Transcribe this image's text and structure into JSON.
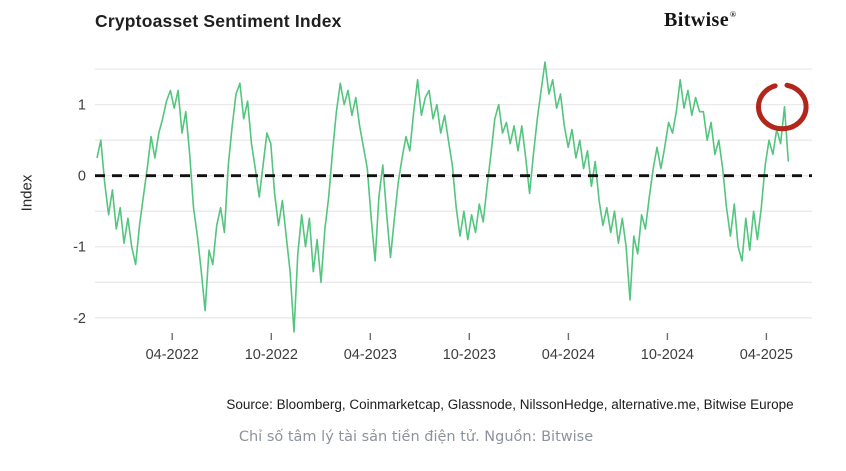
{
  "page": {
    "title": "Cryptoasset Sentiment Index",
    "brand": "Bitwise",
    "brand_reg": "®",
    "source_line": "Source: Bloomberg, Coinmarketcap, Glassnode, NilssonHedge, alternative.me, Bitwise Europe",
    "caption": "Chỉ số tâm lý tài sản tiền điện tử. Nguồn: Bitwise"
  },
  "colors": {
    "line": "#53c57e",
    "grid": "#eaeaea",
    "zero_line": "#111111",
    "annotation": "#b3261c",
    "tick_text": "#3d3d3d"
  },
  "chart_data": {
    "type": "line",
    "title": "Cryptoasset Sentiment Index",
    "xlabel": "",
    "ylabel": "Index",
    "xlim": [
      2021.86,
      2025.48
    ],
    "ylim": [
      -2.2,
      1.6
    ],
    "grid": "horizontal",
    "legend": "none",
    "y_gridlines": [
      -2,
      -1.5,
      -1,
      -0.5,
      0,
      0.5,
      1,
      1.5
    ],
    "y_ticks": [
      {
        "v": 1,
        "label": "1"
      },
      {
        "v": 0,
        "label": "0"
      },
      {
        "v": -1,
        "label": "-1"
      },
      {
        "v": -2,
        "label": "-2"
      }
    ],
    "x_ticks": [
      {
        "v": 2022.25,
        "label": "04-2022"
      },
      {
        "v": 2022.75,
        "label": "10-2022"
      },
      {
        "v": 2023.25,
        "label": "04-2023"
      },
      {
        "v": 2023.75,
        "label": "10-2023"
      },
      {
        "v": 2024.25,
        "label": "04-2024"
      },
      {
        "v": 2024.75,
        "label": "10-2024"
      },
      {
        "v": 2025.25,
        "label": "04-2025"
      }
    ],
    "zero_line": {
      "y": 0,
      "style": "dashed"
    },
    "series": [
      {
        "name": "Cryptoasset Sentiment Index",
        "x_start": 2021.87,
        "x_step": 0.0195,
        "values": [
          0.25,
          0.5,
          -0.1,
          -0.55,
          -0.2,
          -0.75,
          -0.45,
          -0.95,
          -0.6,
          -1.0,
          -1.25,
          -0.7,
          -0.3,
          0.1,
          0.55,
          0.25,
          0.6,
          0.8,
          1.05,
          1.2,
          0.95,
          1.2,
          0.6,
          0.9,
          0.3,
          -0.45,
          -0.85,
          -1.35,
          -1.9,
          -1.05,
          -1.25,
          -0.7,
          -0.45,
          -0.8,
          0.15,
          0.7,
          1.15,
          1.3,
          0.8,
          1.05,
          0.45,
          0.1,
          -0.3,
          0.15,
          0.6,
          0.45,
          -0.25,
          -0.7,
          -0.35,
          -0.85,
          -1.35,
          -2.2,
          -1.1,
          -0.55,
          -1.0,
          -0.6,
          -1.35,
          -0.9,
          -1.5,
          -0.75,
          -0.3,
          0.35,
          0.9,
          1.3,
          1.0,
          1.2,
          0.85,
          1.1,
          0.7,
          0.4,
          0.1,
          -0.6,
          -1.2,
          -0.3,
          0.15,
          -0.55,
          -1.15,
          -0.6,
          -0.1,
          0.25,
          0.55,
          0.35,
          0.9,
          1.35,
          0.85,
          1.1,
          1.2,
          0.8,
          1.0,
          0.6,
          0.85,
          0.5,
          0.15,
          -0.45,
          -0.85,
          -0.5,
          -0.9,
          -0.55,
          -0.8,
          -0.4,
          -0.65,
          -0.15,
          0.3,
          0.8,
          1.0,
          0.6,
          0.75,
          0.45,
          0.7,
          0.35,
          0.7,
          0.25,
          -0.25,
          0.3,
          0.8,
          1.2,
          1.6,
          1.15,
          1.35,
          0.95,
          1.15,
          0.7,
          0.4,
          0.65,
          0.25,
          0.5,
          0.1,
          0.35,
          -0.15,
          0.2,
          -0.35,
          -0.7,
          -0.45,
          -0.8,
          -0.5,
          -0.95,
          -0.6,
          -1.0,
          -1.75,
          -0.85,
          -1.1,
          -0.55,
          -0.75,
          -0.3,
          0.1,
          0.4,
          0.1,
          0.4,
          0.75,
          0.6,
          0.9,
          1.35,
          0.95,
          1.2,
          0.85,
          1.1,
          0.9,
          0.9,
          0.5,
          0.75,
          0.3,
          0.5,
          0.1,
          -0.45,
          -0.85,
          -0.4,
          -1.0,
          -1.2,
          -0.6,
          -1.05,
          -0.5,
          -0.9,
          -0.45,
          0.15,
          0.5,
          0.3,
          0.65,
          0.45,
          0.97,
          0.2
        ]
      }
    ],
    "annotation": {
      "shape": "hand-drawn-circle",
      "x": 2025.33,
      "y": 0.97,
      "rx_years": 0.12,
      "ry_units": 0.31,
      "gap": "top"
    }
  }
}
